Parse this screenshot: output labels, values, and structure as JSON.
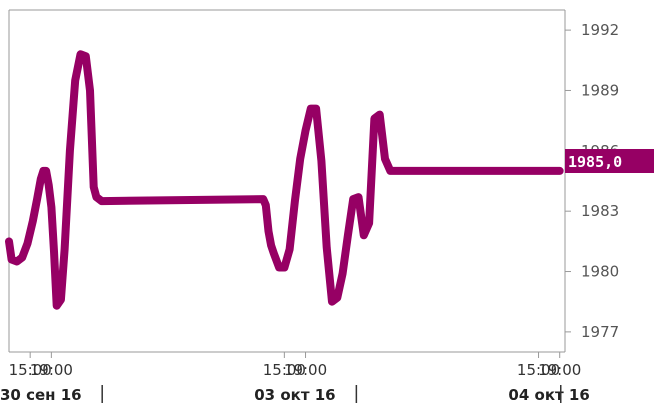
{
  "chart_data": {
    "type": "line",
    "series_color": "#960064",
    "last_value_label": "1985,0",
    "y_ticks": [
      "1992",
      "1989",
      "1986",
      "1983",
      "1980",
      "1977"
    ],
    "y_tick_values": [
      1992,
      1989,
      1986,
      1983,
      1980,
      1977
    ],
    "ylim": [
      1976,
      1993
    ],
    "x_ticks": [
      "15:00",
      "19:00",
      "15:00",
      "19:00",
      "15:00",
      "19:00"
    ],
    "x_tick_hours": [
      15,
      19,
      63,
      67,
      111,
      115
    ],
    "date_labels": [
      "30 сен 16",
      "03 окт 16",
      "04 окт 16"
    ],
    "xlim": [
      11,
      116
    ],
    "x_hours": [
      11,
      11.5,
      12.5,
      13.5,
      14.5,
      15.5,
      16.3,
      17,
      17.5,
      18,
      18.5,
      19,
      19.5,
      20,
      20.8,
      21.5,
      22.5,
      23.5,
      24.5,
      25.5,
      26.3,
      27,
      27.5,
      28,
      28.5,
      59,
      59.5,
      60,
      60.5,
      61,
      62,
      63,
      64,
      65,
      66,
      67,
      68,
      69,
      70,
      71,
      72,
      73,
      74,
      75,
      76,
      77,
      78,
      79,
      80,
      81,
      82,
      83,
      84,
      107,
      107.5,
      108,
      108.5,
      109,
      109.5,
      110,
      110.5,
      111,
      112,
      113,
      114,
      115
    ],
    "values": [
      1981.5,
      1980.6,
      1980.5,
      1980.7,
      1981.4,
      1982.5,
      1983.6,
      1984.6,
      1985.0,
      1985.0,
      1984.3,
      1983.2,
      1981.0,
      1978.3,
      1978.6,
      1981.1,
      1986.0,
      1989.5,
      1990.8,
      1990.7,
      1989.0,
      1984.2,
      1983.7,
      1983.6,
      1983.5,
      1983.6,
      1983.3,
      1982.0,
      1981.3,
      1980.9,
      1980.2,
      1980.2,
      1981.1,
      1983.5,
      1985.6,
      1987.0,
      1988.1,
      1988.1,
      1985.5,
      1981.2,
      1978.5,
      1978.7,
      1979.9,
      1981.8,
      1983.6,
      1983.7,
      1981.8,
      1982.4,
      1987.6,
      1987.8,
      1985.6,
      1985.0,
      1985.0,
      1985.0,
      1985.0,
      1985.0,
      1985.0,
      1985.0,
      1985.0,
      1985.0,
      1985.0,
      1985.0,
      1985.0,
      1985.0,
      1985.0,
      1985.0
    ]
  }
}
